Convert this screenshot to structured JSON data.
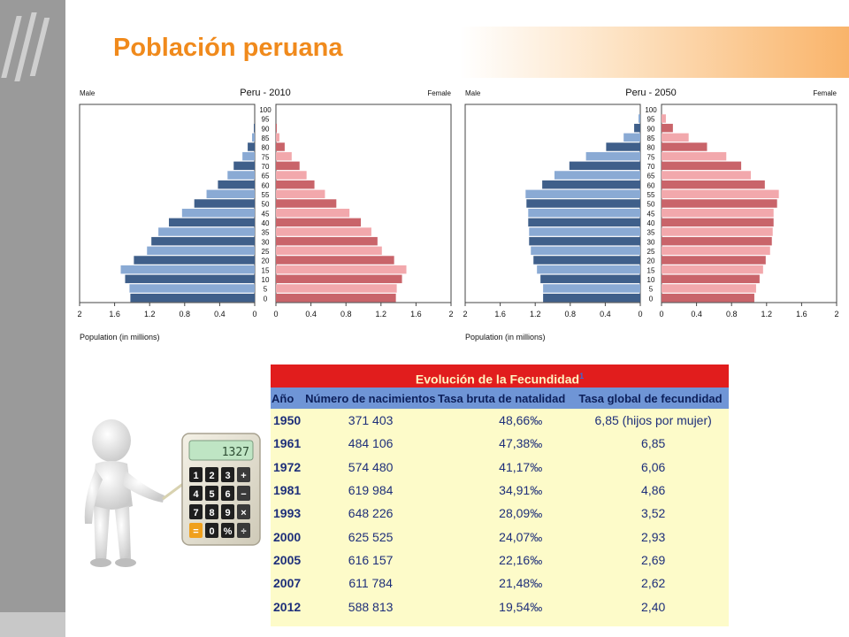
{
  "slide": {
    "title": "Población peruana"
  },
  "colors": {
    "accent": "#f08a1c",
    "male_dark": "#3f5f8a",
    "male_light": "#8aaad4",
    "female_dark": "#c9646a",
    "female_light": "#f2a8ac",
    "table_header_red": "#e11d1d",
    "table_col_blue": "#6f95d6",
    "table_body": "#fdfbc9"
  },
  "chart_data": [
    {
      "type": "bar",
      "title": "Peru - 2010",
      "left_label": "Male",
      "right_label": "Female",
      "xlabel": "Population (in millions)",
      "xlim": [
        0,
        2
      ],
      "x_ticks": [
        "2",
        "1.6",
        "1.2",
        "0.8",
        "0.4",
        "0",
        "0",
        "0.4",
        "0.8",
        "1.2",
        "1.6",
        "2"
      ],
      "categories": [
        "100",
        "95",
        "90",
        "85",
        "80",
        "75",
        "70",
        "65",
        "60",
        "55",
        "50",
        "45",
        "40",
        "35",
        "30",
        "25",
        "20",
        "15",
        "10",
        "5",
        "0"
      ],
      "series": [
        {
          "name": "Male",
          "values": [
            0.0,
            0.0,
            0.01,
            0.03,
            0.08,
            0.14,
            0.24,
            0.31,
            0.42,
            0.55,
            0.69,
            0.83,
            0.98,
            1.1,
            1.18,
            1.23,
            1.38,
            1.53,
            1.48,
            1.43,
            1.42
          ]
        },
        {
          "name": "Female",
          "values": [
            0.0,
            0.0,
            0.01,
            0.04,
            0.1,
            0.18,
            0.27,
            0.35,
            0.44,
            0.56,
            0.69,
            0.84,
            0.97,
            1.09,
            1.16,
            1.21,
            1.35,
            1.49,
            1.44,
            1.38,
            1.37
          ]
        }
      ]
    },
    {
      "type": "bar",
      "title": "Peru - 2050",
      "left_label": "Male",
      "right_label": "Female",
      "xlabel": "Population (in millions)",
      "xlim": [
        0,
        2
      ],
      "x_ticks": [
        "2",
        "1.6",
        "1.2",
        "0.8",
        "0.4",
        "0",
        "0",
        "0.4",
        "0.8",
        "1.2",
        "1.6",
        "2"
      ],
      "categories": [
        "100",
        "95",
        "90",
        "85",
        "80",
        "75",
        "70",
        "65",
        "60",
        "55",
        "50",
        "45",
        "40",
        "35",
        "30",
        "25",
        "20",
        "15",
        "10",
        "5",
        "0"
      ],
      "series": [
        {
          "name": "Male",
          "values": [
            0.0,
            0.02,
            0.07,
            0.19,
            0.39,
            0.62,
            0.81,
            0.98,
            1.12,
            1.31,
            1.3,
            1.28,
            1.28,
            1.27,
            1.27,
            1.25,
            1.22,
            1.18,
            1.14,
            1.11,
            1.11
          ]
        },
        {
          "name": "Female",
          "values": [
            0.0,
            0.05,
            0.13,
            0.31,
            0.52,
            0.74,
            0.91,
            1.02,
            1.18,
            1.34,
            1.32,
            1.28,
            1.28,
            1.27,
            1.26,
            1.24,
            1.19,
            1.16,
            1.12,
            1.08,
            1.06
          ]
        }
      ]
    },
    {
      "type": "table",
      "title": "Evolución de la Fecundidad",
      "title_note": "1",
      "columns": [
        "Año",
        "Número de nacimientos",
        "Tasa bruta de natalidad",
        "Tasa global de fecundidad"
      ],
      "rows": [
        [
          "1950",
          "371 403",
          "48,66‰",
          "6,85 (hijos por mujer)"
        ],
        [
          "1961",
          "484 106",
          "47,38‰",
          "6,85"
        ],
        [
          "1972",
          "574 480",
          "41,17‰",
          "6,06"
        ],
        [
          "1981",
          "619 984",
          "34,91‰",
          "4,86"
        ],
        [
          "1993",
          "648 226",
          "28,09‰",
          "3,52"
        ],
        [
          "2000",
          "625 525",
          "24,07‰",
          "2,93"
        ],
        [
          "2005",
          "616 157",
          "22,16‰",
          "2,69"
        ],
        [
          "2007",
          "611 784",
          "21,48‰",
          "2,62"
        ],
        [
          "2012",
          "588 813",
          "19,54‰",
          "2,40"
        ]
      ]
    }
  ],
  "illustration": {
    "calculator_display": "1327",
    "keys": [
      "1",
      "2",
      "3",
      "+",
      "4",
      "5",
      "6",
      "−",
      "7",
      "8",
      "9",
      "×",
      "=",
      "0",
      "%",
      "÷"
    ]
  }
}
